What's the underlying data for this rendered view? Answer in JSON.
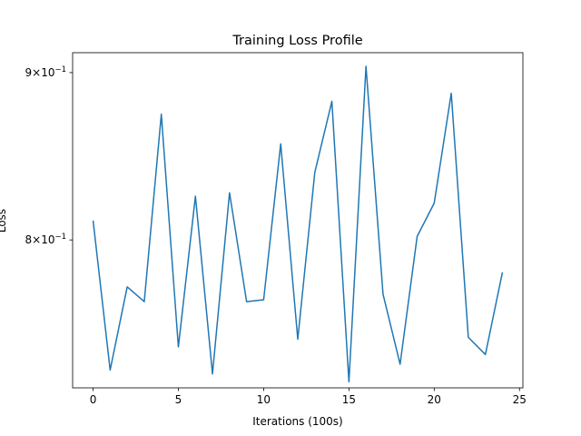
{
  "chart_data": {
    "type": "line",
    "title": "Training Loss Profile",
    "xlabel": "Iterations (100s)",
    "ylabel": "Loss",
    "yscale": "log",
    "xlim": [
      -1.2,
      25.2
    ],
    "ylim": [
      0.7209,
      0.9127
    ],
    "grid": false,
    "legend": null,
    "color": "#1f77b4",
    "x_ticks": [
      0,
      5,
      10,
      15,
      20,
      25
    ],
    "x_tick_labels": [
      "0",
      "5",
      "10",
      "15",
      "20",
      "25"
    ],
    "y_ticks": [
      0.8,
      0.9
    ],
    "y_tick_labels": [
      {
        "mantissa": "8",
        "exponent": "−1"
      },
      {
        "mantissa": "9",
        "exponent": "−1"
      }
    ],
    "x": [
      0,
      1,
      2,
      3,
      4,
      5,
      6,
      7,
      8,
      9,
      10,
      11,
      12,
      13,
      14,
      15,
      16,
      17,
      18,
      19,
      20,
      21,
      22,
      23,
      24
    ],
    "series": [
      {
        "values": [
          0.811,
          0.73,
          0.774,
          0.766,
          0.874,
          0.742,
          0.825,
          0.728,
          0.827,
          0.766,
          0.767,
          0.856,
          0.746,
          0.839,
          0.882,
          0.724,
          0.904,
          0.77,
          0.733,
          0.802,
          0.821,
          0.887,
          0.747,
          0.738,
          0.782
        ]
      }
    ]
  }
}
